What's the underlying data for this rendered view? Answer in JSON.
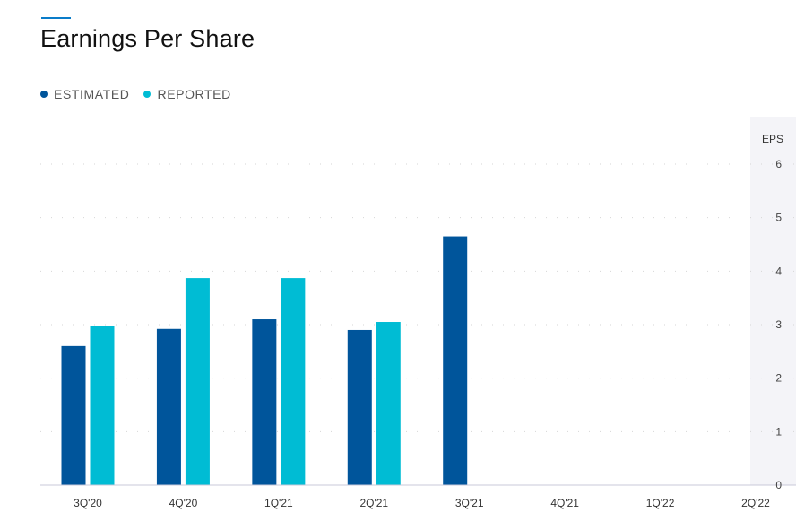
{
  "title": "Earnings Per Share",
  "legend": [
    {
      "label": "ESTIMATED",
      "color": "#00559b"
    },
    {
      "label": "REPORTED",
      "color": "#00bcd4"
    }
  ],
  "chart_data": {
    "type": "bar",
    "ylabel": "EPS",
    "ylim": [
      0,
      6
    ],
    "yticks": [
      0,
      1,
      2,
      3,
      4,
      5,
      6
    ],
    "grid": true,
    "legend_position": "top-left",
    "categories": [
      "3Q'20",
      "4Q'20",
      "1Q'21",
      "2Q'21",
      "3Q'21",
      "4Q'21",
      "1Q'22",
      "2Q'22"
    ],
    "series": [
      {
        "name": "ESTIMATED",
        "color": "#00559b",
        "values": [
          2.6,
          2.92,
          3.1,
          2.9,
          4.65,
          null,
          null,
          null
        ]
      },
      {
        "name": "REPORTED",
        "color": "#00bcd4",
        "values": [
          2.98,
          3.87,
          3.87,
          3.05,
          null,
          null,
          null,
          null
        ]
      }
    ]
  }
}
